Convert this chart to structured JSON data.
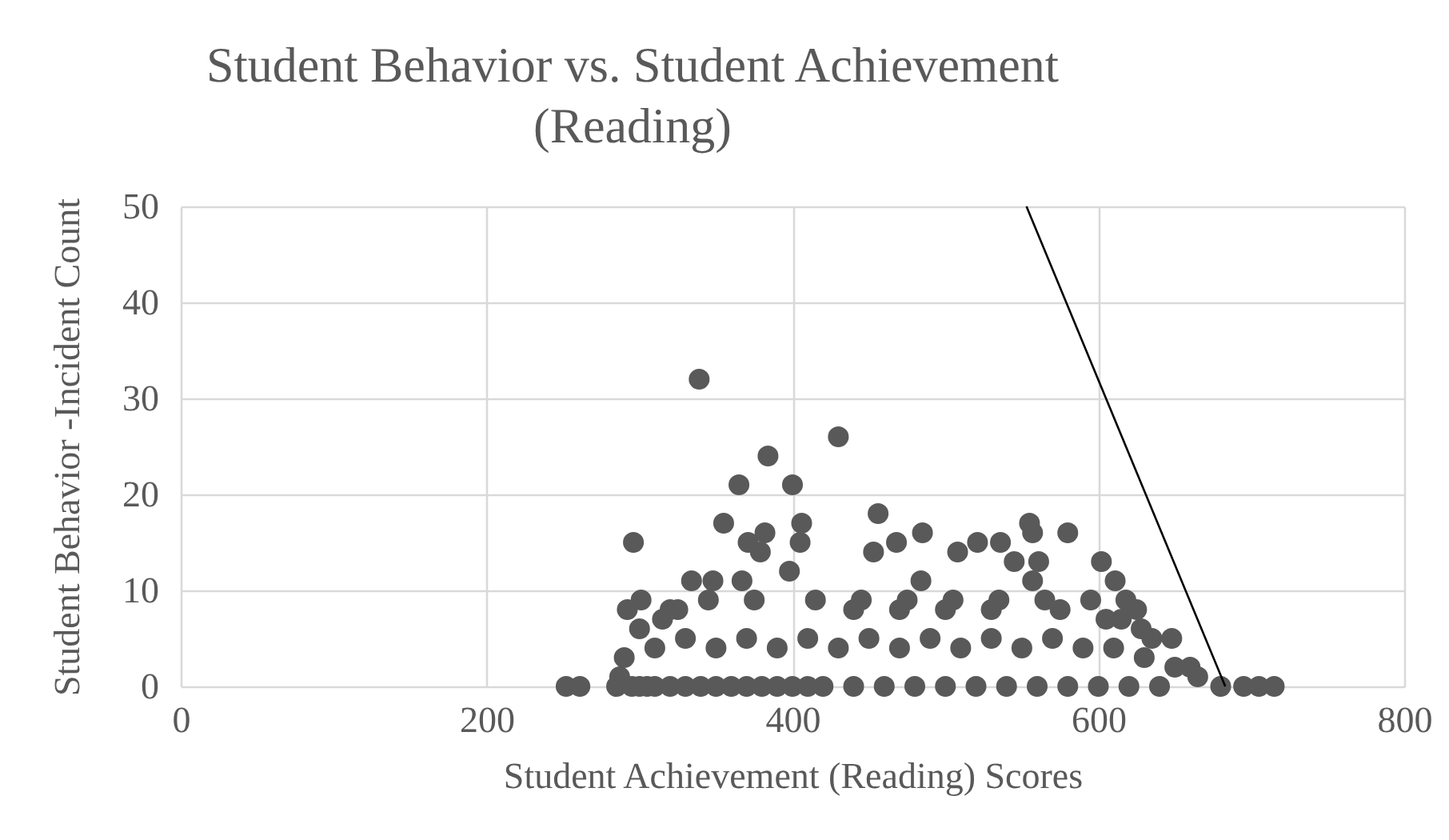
{
  "chart_data": {
    "type": "scatter",
    "title": "Student Behavior vs. Student Achievement (Reading)",
    "xlabel": "Student Achievement (Reading) Scores",
    "ylabel": "Student Behavior -Incident Count",
    "xlim": [
      0,
      800
    ],
    "xticks": [
      0,
      200,
      400,
      600,
      800
    ],
    "ylim": [
      0,
      50
    ],
    "yticks": [
      0,
      10,
      20,
      30,
      40,
      50
    ],
    "grid": true,
    "series": [
      {
        "marker": "circle",
        "color": "#595959",
        "x": [
          339,
          430,
          384,
          365,
          400,
          355,
          296,
          382,
          371,
          379,
          406,
          405,
          398,
          334,
          348,
          367,
          252,
          261,
          301,
          292,
          290,
          287,
          456,
          485,
          468,
          453,
          555,
          580,
          557,
          521,
          536,
          508,
          545,
          561,
          602,
          611,
          618,
          625,
          648,
          660,
          557,
          484,
          285,
          295,
          300,
          305,
          310,
          320,
          330,
          340,
          350,
          360,
          370,
          380,
          390,
          400,
          410,
          420,
          440,
          460,
          480,
          500,
          520,
          540,
          560,
          580,
          600,
          620,
          640,
          310,
          330,
          350,
          370,
          390,
          410,
          430,
          450,
          470,
          490,
          510,
          530,
          550,
          570,
          590,
          610,
          630,
          320,
          345,
          375,
          415,
          445,
          475,
          505,
          535,
          565,
          595,
          615,
          635,
          650,
          665,
          680,
          695,
          705,
          715,
          300,
          315,
          325,
          440,
          470,
          500,
          530,
          575,
          605,
          628
        ],
        "values": [
          32,
          26,
          24,
          21,
          21,
          17,
          15,
          16,
          15,
          14,
          17,
          15,
          12,
          11,
          11,
          11,
          0,
          0,
          9,
          8,
          3,
          1,
          18,
          16,
          15,
          14,
          17,
          16,
          16,
          15,
          15,
          14,
          13,
          13,
          13,
          11,
          9,
          8,
          5,
          2,
          11,
          11,
          0,
          0,
          0,
          0,
          0,
          0,
          0,
          0,
          0,
          0,
          0,
          0,
          0,
          0,
          0,
          0,
          0,
          0,
          0,
          0,
          0,
          0,
          0,
          0,
          0,
          0,
          0,
          4,
          5,
          4,
          5,
          4,
          5,
          4,
          5,
          4,
          5,
          4,
          5,
          4,
          5,
          4,
          4,
          3,
          8,
          9,
          9,
          9,
          9,
          9,
          9,
          9,
          9,
          9,
          7,
          5,
          2,
          1,
          0,
          0,
          0,
          0,
          6,
          7,
          8,
          8,
          8,
          8,
          8,
          8,
          7,
          6
        ]
      },
      {
        "type": "line",
        "color": "#000000",
        "x": [
          553,
          683
        ],
        "values": [
          50,
          0
        ]
      }
    ]
  }
}
